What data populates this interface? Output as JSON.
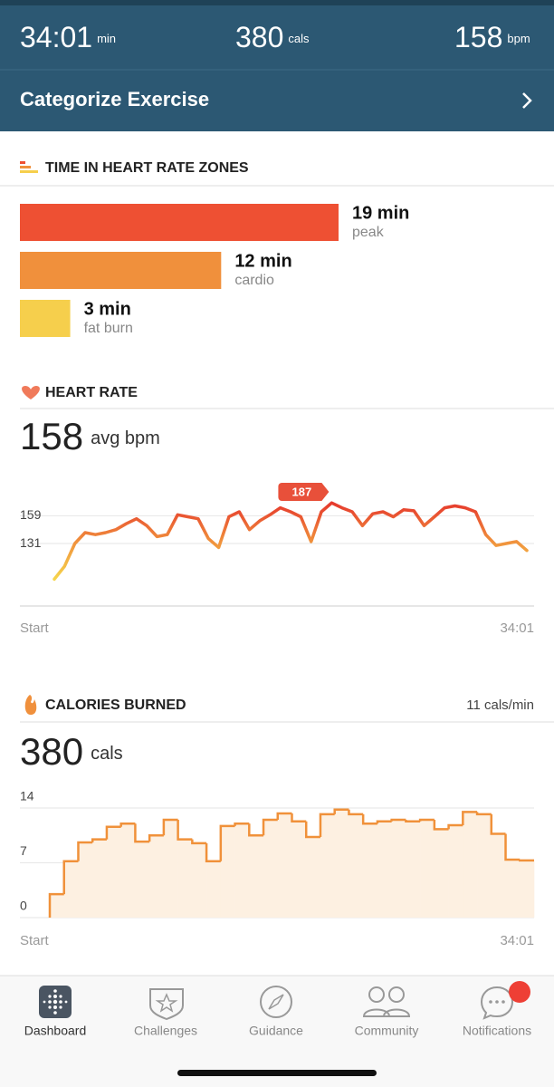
{
  "header": {
    "duration": "34:01",
    "duration_unit": "min",
    "calories": "380",
    "calories_unit": "cals",
    "heart_rate": "158",
    "heart_rate_unit": "bpm",
    "action": "Categorize Exercise"
  },
  "zones": {
    "title": "TIME IN HEART RATE ZONES",
    "items": [
      {
        "name": "peak",
        "minutes": 19,
        "label": "19 min",
        "color": "#ee5033"
      },
      {
        "name": "cardio",
        "minutes": 12,
        "label": "12 min",
        "color": "#f0903c"
      },
      {
        "name": "fat burn",
        "minutes": 3,
        "label": "3 min",
        "color": "#f6cf4c"
      }
    ]
  },
  "heart_rate": {
    "title": "HEART RATE",
    "average": 158,
    "average_unit": "avg bpm",
    "chart": {
      "type": "line",
      "values": [
        95,
        108,
        131,
        142,
        140,
        142,
        145,
        151,
        156,
        149,
        138,
        140,
        160,
        158,
        156,
        136,
        127,
        158,
        163,
        145,
        154,
        160,
        167,
        163,
        158,
        133,
        163,
        172,
        167,
        163,
        149,
        161,
        163,
        158,
        165,
        164,
        149,
        158,
        167,
        169,
        167,
        163,
        140,
        129,
        131,
        133,
        124
      ],
      "ylim": [
        68,
        195
      ],
      "yticks": [
        131,
        159
      ],
      "peak_label": 187,
      "x_start": "Start",
      "x_end": "34:01"
    }
  },
  "calories": {
    "title": "CALORIES BURNED",
    "rate": "11 cals/min",
    "total": 380,
    "total_unit": "cals",
    "chart": {
      "type": "step",
      "color": "#f0913a",
      "values": [
        3,
        7.2,
        9.6,
        10,
        11.6,
        12,
        9.7,
        10.5,
        12.5,
        10,
        9.5,
        7.2,
        11.7,
        12,
        10.5,
        12.5,
        13.3,
        12.3,
        10.3,
        13.2,
        13.8,
        13.2,
        12,
        12.3,
        12.5,
        12.3,
        12.5,
        11.3,
        11.8,
        13.5,
        13.2,
        10.7,
        7.4,
        7.3
      ],
      "ylim": [
        0,
        14
      ],
      "yticks": [
        0,
        7,
        14
      ],
      "x_start": "Start",
      "x_end": "34:01"
    }
  },
  "nav": {
    "items": [
      "Dashboard",
      "Challenges",
      "Guidance",
      "Community",
      "Notifications"
    ]
  }
}
